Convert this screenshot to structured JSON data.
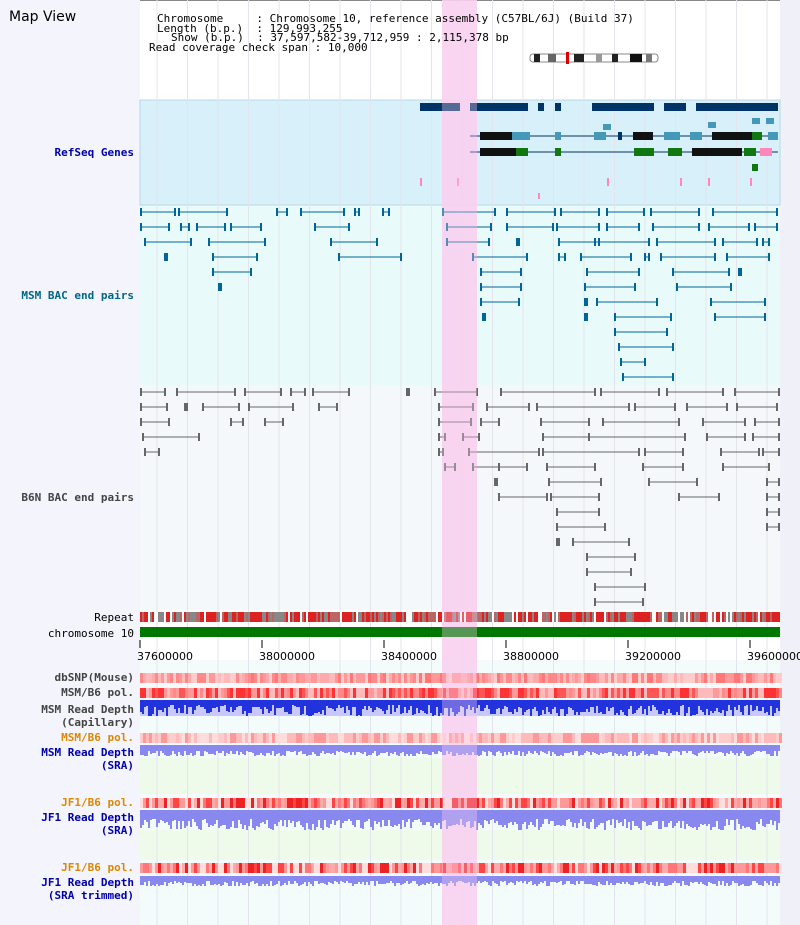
{
  "page": {
    "title": "Map View"
  },
  "info": {
    "chromosome_label": "Chromosome",
    "chromosome_value": "Chromosome 10, reference assembly (C57BL/6J) (Build 37)",
    "length_label": "Length (b.p.)",
    "length_value": "129,993,255",
    "show_label": "Show (b.p.)",
    "show_value": "37,597,582-39,712,959 : 2,115,378 bp",
    "coverage_label": "Read coverage check span",
    "coverage_value": "10,000"
  },
  "tracks": {
    "refseq": "RefSeq Genes",
    "msm_bac": "MSM BAC end pairs",
    "b6n_bac": "B6N BAC end pairs",
    "repeat": "Repeat",
    "chromosome": "chromosome 10",
    "dbsnp": "dbSNP(Mouse)",
    "msm_b6_pol_1": "MSM/B6 pol.",
    "msm_depth_cap_1": "MSM Read Depth",
    "msm_depth_cap_2": "(Capillary)",
    "msm_b6_pol_2": "MSM/B6 pol.",
    "msm_depth_sra_1": "MSM Read Depth",
    "msm_depth_sra_2": "(SRA)",
    "jf1_b6_pol_1": "JF1/B6 pol.",
    "jf1_depth_sra_1": "JF1 Read Depth",
    "jf1_depth_sra_2": "(SRA)",
    "jf1_b6_pol_2": "JF1/B6 pol.",
    "jf1_depth_trim_1": "JF1 Read Depth",
    "jf1_depth_trim_2": "(SRA trimmed)"
  },
  "axis": {
    "ticks": [
      "37600000",
      "38000000",
      "38400000",
      "38800000",
      "39200000",
      "39600000"
    ]
  },
  "colors": {
    "label_blue": "#0000aa",
    "label_teal": "#006688",
    "label_gray": "#444444",
    "label_orange": "#dd8800",
    "highlight": "#f8d0f0",
    "refseq_bg": "#d8f0fa",
    "msm_bg": "#e8fafa",
    "b6n_bg": "#f5f8fa",
    "chromosome_bar": "#007700",
    "gene_dark": "#003366",
    "gene_teal": "#4499bb",
    "gene_green": "#117711",
    "msm_pair": "#006699",
    "b6n_pair": "#666666",
    "depth_blue": "#2233dd",
    "depth_light": "#8888ee"
  }
}
